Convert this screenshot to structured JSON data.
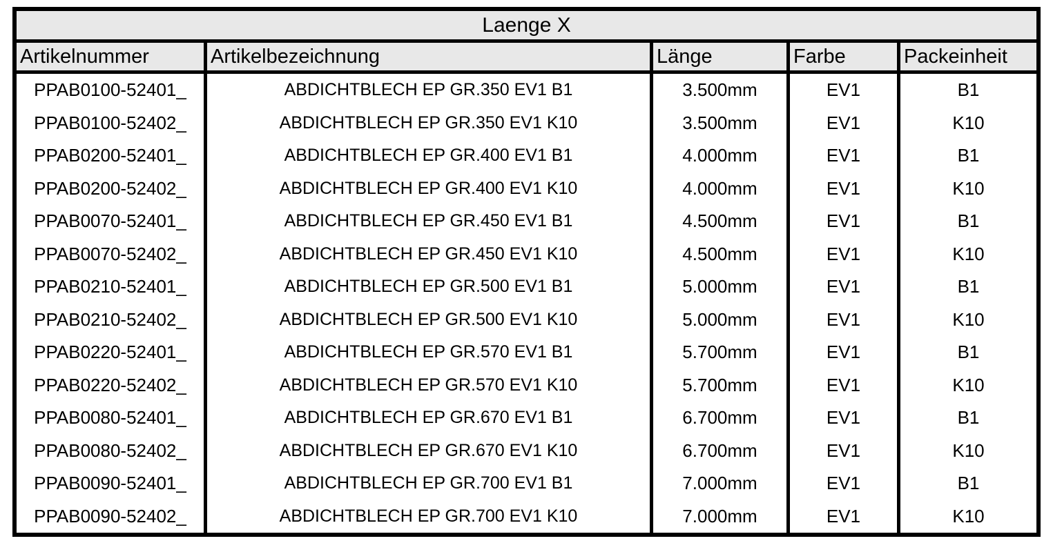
{
  "table": {
    "title": "Laenge X",
    "columns": [
      {
        "label": "Artikelnummer"
      },
      {
        "label": "Artikelbezeichnung"
      },
      {
        "label": "Länge"
      },
      {
        "label": "Farbe"
      },
      {
        "label": "Packeinheit"
      }
    ],
    "rows": [
      {
        "artikelnummer": "PPAB0100-52401_",
        "artikelbezeichnung": "ABDICHTBLECH EP GR.350 EV1 B1",
        "laenge": "3.500mm",
        "farbe": "EV1",
        "packeinheit": "B1"
      },
      {
        "artikelnummer": "PPAB0100-52402_",
        "artikelbezeichnung": "ABDICHTBLECH EP GR.350 EV1 K10",
        "laenge": "3.500mm",
        "farbe": "EV1",
        "packeinheit": "K10"
      },
      {
        "artikelnummer": "PPAB0200-52401_",
        "artikelbezeichnung": "ABDICHTBLECH EP GR.400 EV1 B1",
        "laenge": "4.000mm",
        "farbe": "EV1",
        "packeinheit": "B1"
      },
      {
        "artikelnummer": "PPAB0200-52402_",
        "artikelbezeichnung": "ABDICHTBLECH EP GR.400 EV1 K10",
        "laenge": "4.000mm",
        "farbe": "EV1",
        "packeinheit": "K10"
      },
      {
        "artikelnummer": "PPAB0070-52401_",
        "artikelbezeichnung": "ABDICHTBLECH EP GR.450 EV1 B1",
        "laenge": "4.500mm",
        "farbe": "EV1",
        "packeinheit": "B1"
      },
      {
        "artikelnummer": "PPAB0070-52402_",
        "artikelbezeichnung": "ABDICHTBLECH EP GR.450 EV1 K10",
        "laenge": "4.500mm",
        "farbe": "EV1",
        "packeinheit": "K10"
      },
      {
        "artikelnummer": "PPAB0210-52401_",
        "artikelbezeichnung": "ABDICHTBLECH EP GR.500 EV1 B1",
        "laenge": "5.000mm",
        "farbe": "EV1",
        "packeinheit": "B1"
      },
      {
        "artikelnummer": "PPAB0210-52402_",
        "artikelbezeichnung": "ABDICHTBLECH EP GR.500 EV1 K10",
        "laenge": "5.000mm",
        "farbe": "EV1",
        "packeinheit": "K10"
      },
      {
        "artikelnummer": "PPAB0220-52401_",
        "artikelbezeichnung": "ABDICHTBLECH EP GR.570 EV1 B1",
        "laenge": "5.700mm",
        "farbe": "EV1",
        "packeinheit": "B1"
      },
      {
        "artikelnummer": "PPAB0220-52402_",
        "artikelbezeichnung": "ABDICHTBLECH EP GR.570 EV1 K10",
        "laenge": "5.700mm",
        "farbe": "EV1",
        "packeinheit": "K10"
      },
      {
        "artikelnummer": "PPAB0080-52401_",
        "artikelbezeichnung": "ABDICHTBLECH EP GR.670 EV1 B1",
        "laenge": "6.700mm",
        "farbe": "EV1",
        "packeinheit": "B1"
      },
      {
        "artikelnummer": "PPAB0080-52402_",
        "artikelbezeichnung": "ABDICHTBLECH EP GR.670 EV1 K10",
        "laenge": "6.700mm",
        "farbe": "EV1",
        "packeinheit": "K10"
      },
      {
        "artikelnummer": "PPAB0090-52401_",
        "artikelbezeichnung": "ABDICHTBLECH EP GR.700 EV1 B1",
        "laenge": "7.000mm",
        "farbe": "EV1",
        "packeinheit": "B1"
      },
      {
        "artikelnummer": "PPAB0090-52402_",
        "artikelbezeichnung": "ABDICHTBLECH EP GR.700 EV1 K10",
        "laenge": "7.000mm",
        "farbe": "EV1",
        "packeinheit": "K10"
      }
    ]
  },
  "colors": {
    "header_bg": "#e8e8e8",
    "row_bg": "#ffffff",
    "border": "#000000",
    "text": "#000000"
  }
}
